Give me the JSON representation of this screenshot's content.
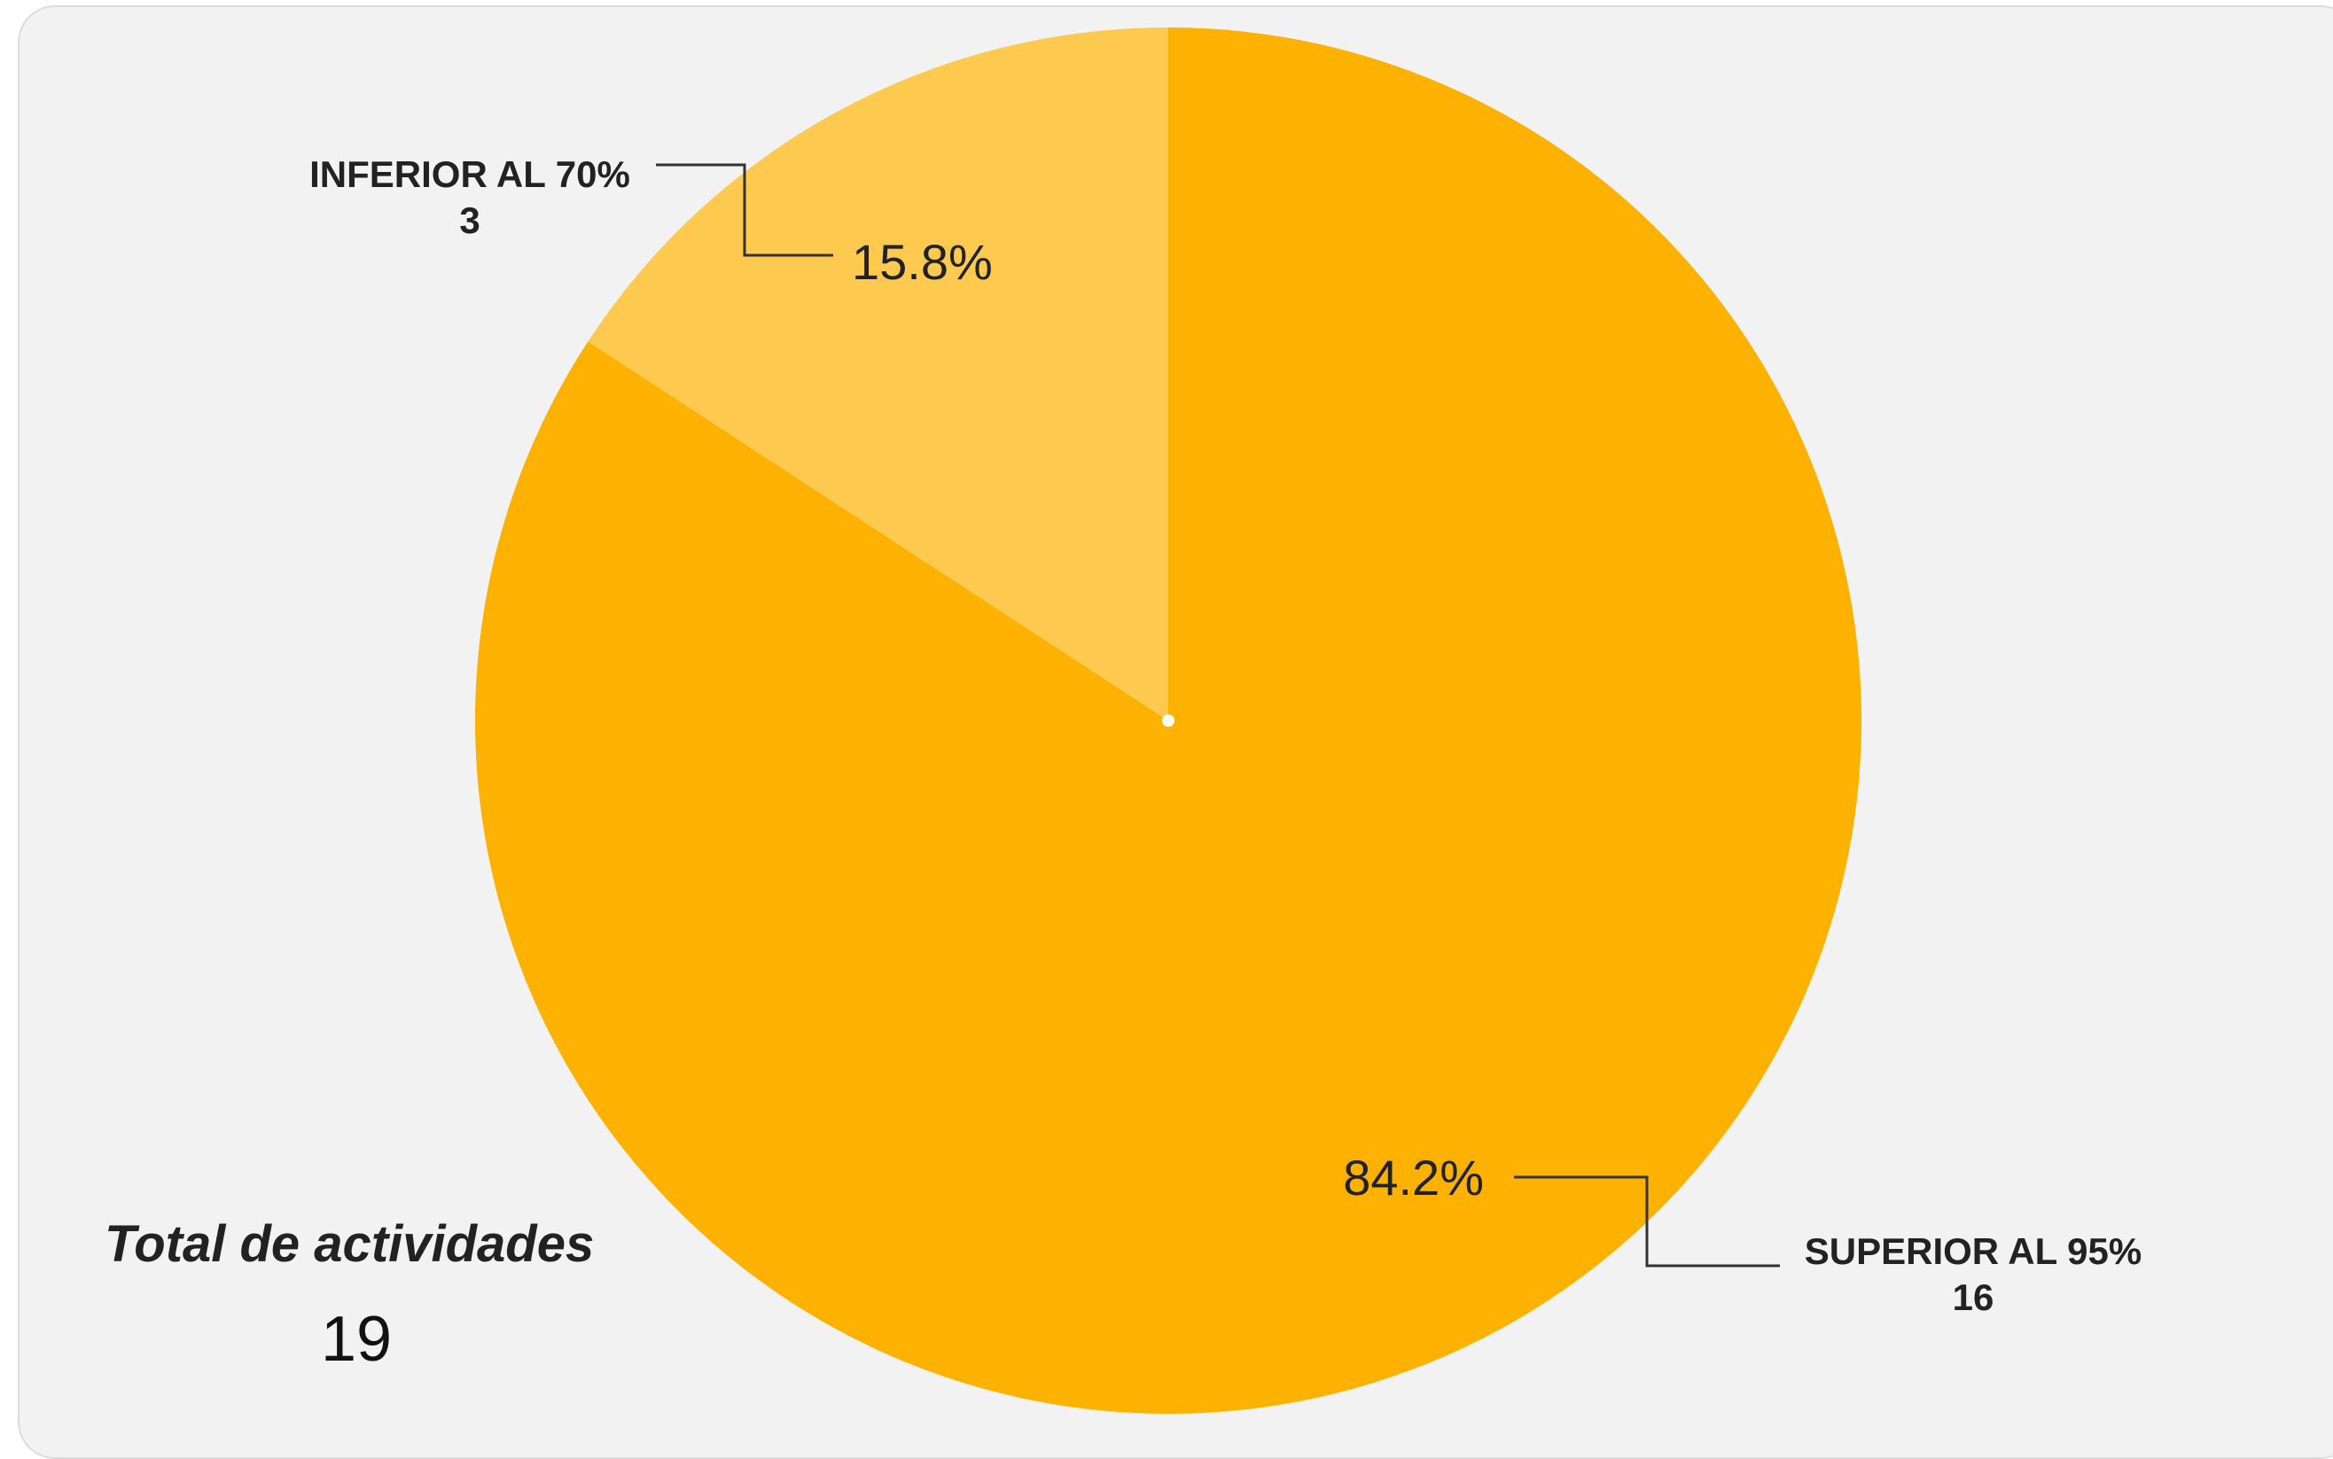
{
  "chart_data": {
    "type": "pie",
    "categories": [
      "SUPERIOR AL 95%",
      "INFERIOR AL 70%"
    ],
    "values": [
      16,
      3
    ],
    "percent_labels": [
      "84.2%",
      "15.8%"
    ],
    "colors": [
      "#fdb100",
      "#fdc94f"
    ]
  },
  "summary": {
    "title": "Total de actividades",
    "value": "19"
  },
  "colors": {
    "background": "#f2f2f2",
    "text": "#222222",
    "leader_line": "#333333"
  }
}
